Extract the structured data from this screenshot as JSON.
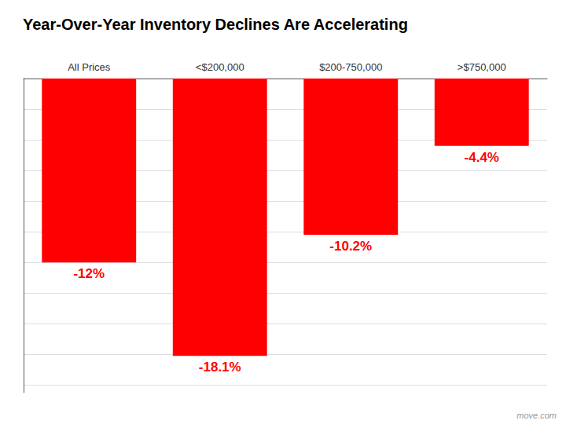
{
  "chart_data": {
    "type": "bar",
    "title": "Year-Over-Year Inventory Declines Are Accelerating",
    "categories": [
      "All Prices",
      "<$200,000",
      "$200-750,000",
      ">$750,000"
    ],
    "values": [
      -12.0,
      -18.1,
      -10.2,
      -4.4
    ],
    "value_labels": [
      "-12%",
      "-18.1%",
      "-10.2%",
      "-4.4%"
    ],
    "data_labels": true,
    "color": "#FF0000",
    "ylim": [
      -20.5,
      0
    ],
    "yticks": [
      -20,
      -18,
      -16,
      -14,
      -12,
      -10,
      -8,
      -6,
      -4,
      -2,
      0
    ],
    "grid": true,
    "tick_labels": "x",
    "annotations": [
      "move.com"
    ]
  }
}
